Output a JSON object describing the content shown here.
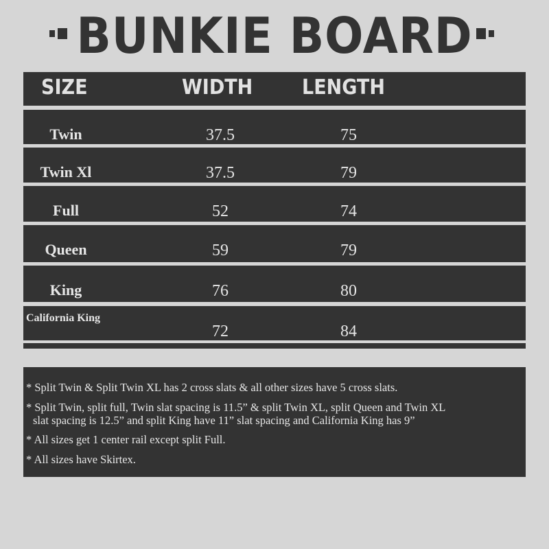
{
  "title": "BUNKIE BOARD",
  "colors": {
    "background": "#d6d6d6",
    "panel": "#333333",
    "text": "#e6e6e6"
  },
  "table": {
    "headers": [
      "SIZE",
      "WIDTH",
      "LENGTH"
    ],
    "rows": [
      {
        "size": "Twin",
        "width": "37.5",
        "length": "75"
      },
      {
        "size": "Twin Xl",
        "width": "37.5",
        "length": "79"
      },
      {
        "size": "Full",
        "width": "52",
        "length": "74"
      },
      {
        "size": "Queen",
        "width": "59",
        "length": "79"
      },
      {
        "size": "King",
        "width": "76",
        "length": "80"
      },
      {
        "size": "California King",
        "width": "72",
        "length": "84"
      }
    ]
  },
  "notes": [
    "* Split Twin & Split Twin XL has 2 cross slats &  all other sizes have 5 cross slats.",
    "* Split Twin, split full, Twin slat spacing is 11.5” & split Twin XL, split Queen and Twin XL",
    "slat spacing is 12.5” and split King have 11” slat spacing and California King has 9”",
    "* All sizes get 1 center rail except split Full.",
    "* All sizes have Skirtex."
  ]
}
